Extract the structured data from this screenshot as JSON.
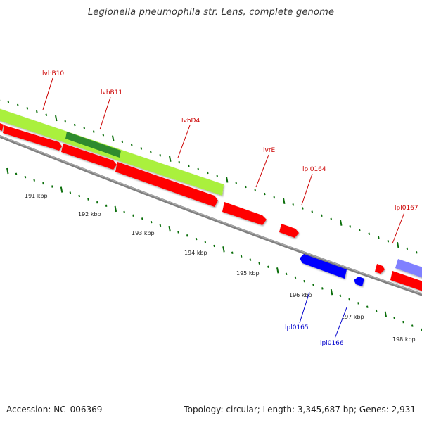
{
  "title": "Legionella pneumophila str. Lens, complete genome",
  "footer": {
    "accession": "Accession: NC_006369",
    "summary": "Topology: circular; Length: 3,345,687 bp; Genes: 2,931"
  },
  "scale_labels": [
    "191 kbp",
    "192 kbp",
    "193 kbp",
    "194 kbp",
    "195 kbp",
    "196 kbp",
    "197 kbp",
    "198 kbp"
  ],
  "gene_labels_forward": [
    {
      "name": "lvhB10",
      "color": "#cc0000"
    },
    {
      "name": "lvhB11",
      "color": "#cc0000"
    },
    {
      "name": "lvhD4",
      "color": "#cc0000"
    },
    {
      "name": "lvrE",
      "color": "#cc0000"
    },
    {
      "name": "lpl0164",
      "color": "#cc0000"
    },
    {
      "name": "lpl0167",
      "color": "#cc0000"
    }
  ],
  "gene_labels_reverse": [
    {
      "name": "lpl0165",
      "color": "#0000cc"
    },
    {
      "name": "lpl0166",
      "color": "#0000cc"
    }
  ],
  "colors": {
    "forward_gene": "#ff0000",
    "reverse_gene": "#0000ff",
    "feature_green": "#aaf03c",
    "feature_dark_green": "#2e8b2e",
    "feature_purple": "#8080ff",
    "backbone": "#808080",
    "tick": "#0a6e0a"
  }
}
